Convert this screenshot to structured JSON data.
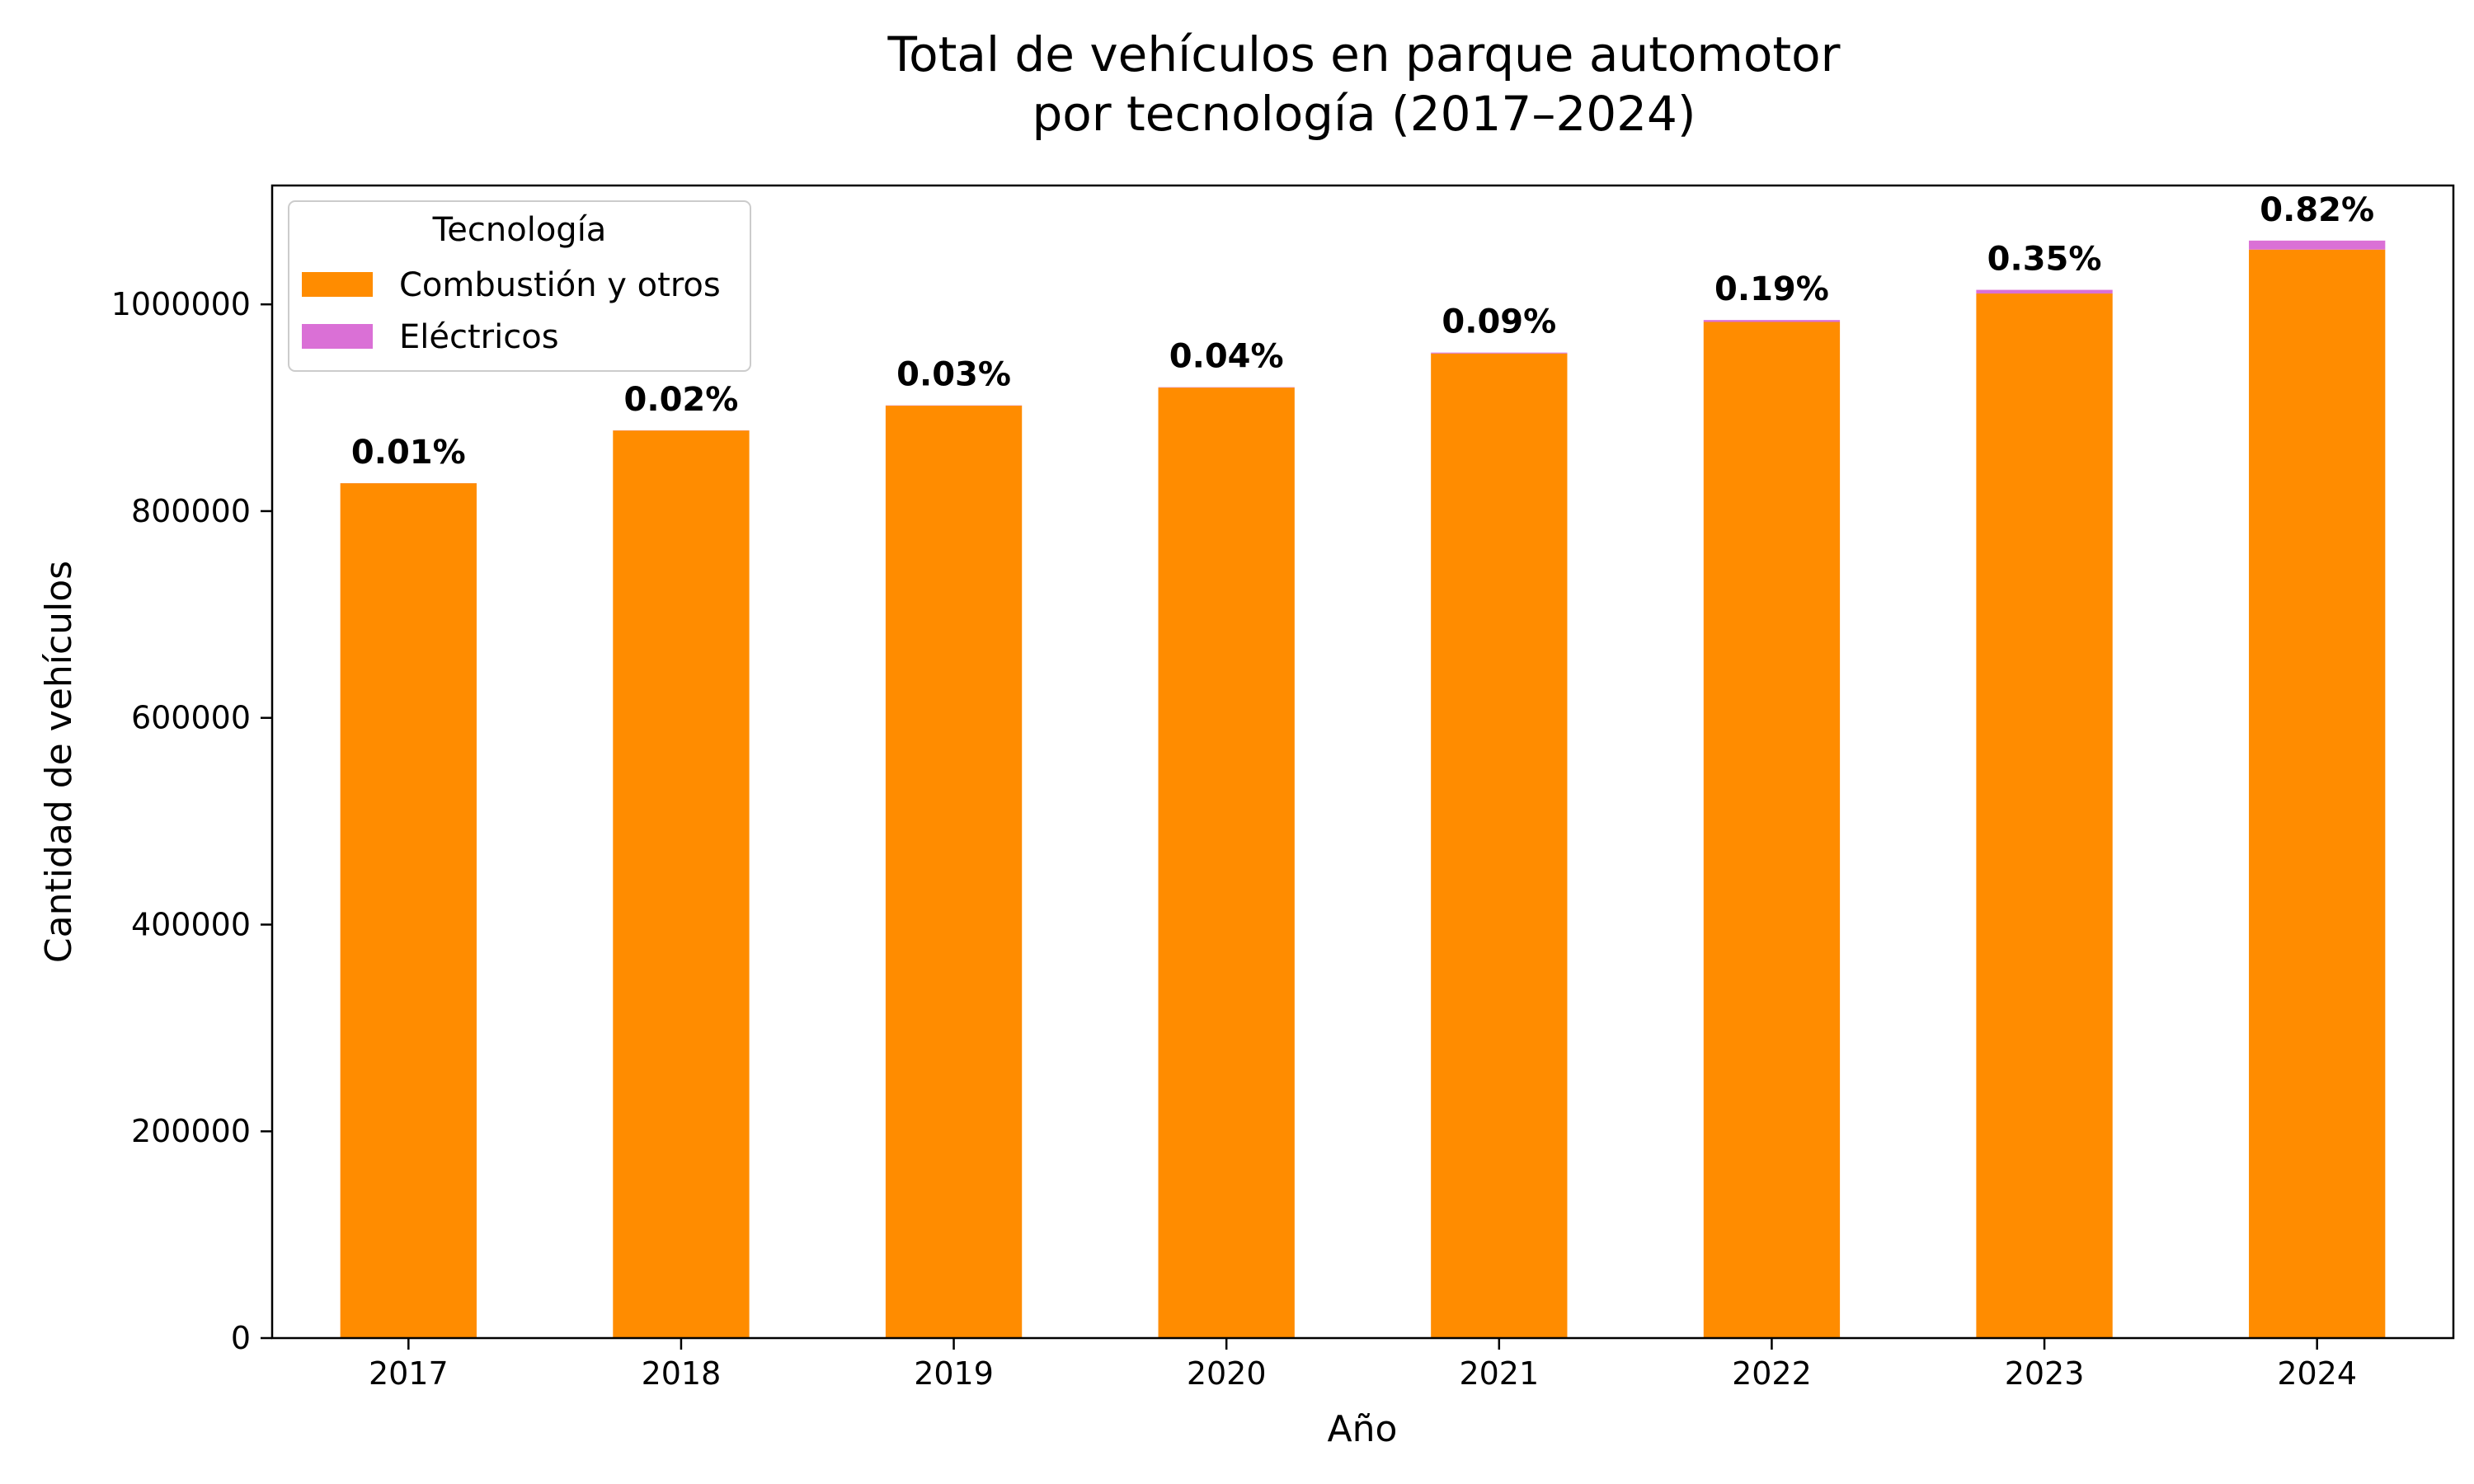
{
  "chart_data": {
    "type": "bar",
    "stacked": true,
    "title_lines": [
      "Total de vehículos en parque automotor",
      "por tecnología (2017–2024)"
    ],
    "xlabel": "Año",
    "ylabel": "Cantidad de vehículos",
    "categories": [
      "2017",
      "2018",
      "2019",
      "2020",
      "2021",
      "2022",
      "2023",
      "2024"
    ],
    "series": [
      {
        "name": "Combustión y otros",
        "color": "#ff8c00",
        "values": [
          827000,
          878000,
          902000,
          919500,
          952500,
          983000,
          1010500,
          1053000
        ]
      },
      {
        "name": "Eléctricos",
        "color": "#da70d6",
        "values": [
          83,
          176,
          271,
          368,
          858,
          1868,
          3549,
          8706
        ]
      }
    ],
    "data_labels": [
      "0.01%",
      "0.02%",
      "0.03%",
      "0.04%",
      "0.09%",
      "0.19%",
      "0.35%",
      "0.82%"
    ],
    "ylim": [
      0,
      1115000
    ],
    "yticks": [
      0,
      200000,
      400000,
      600000,
      800000,
      1000000
    ],
    "legend": {
      "title": "Tecnología",
      "position": "top-left"
    },
    "grid": false
  }
}
